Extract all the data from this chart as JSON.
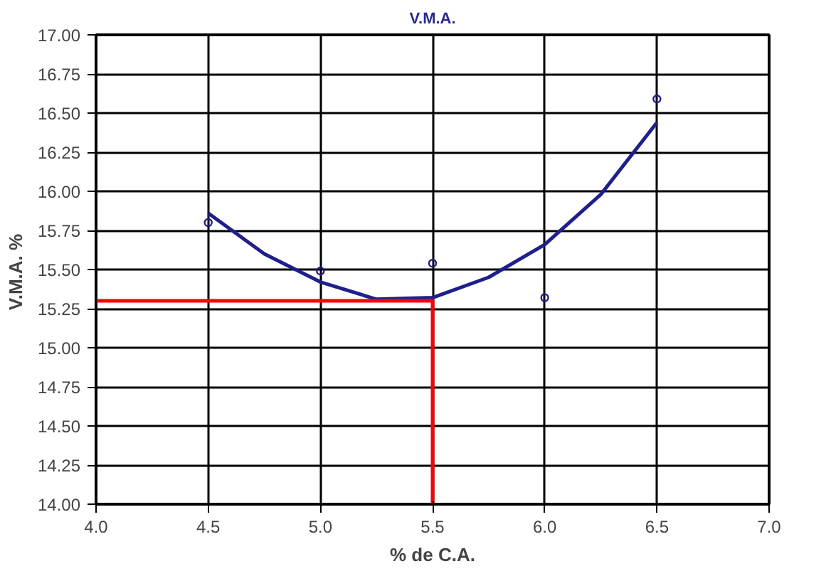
{
  "chart_data": {
    "type": "scatter",
    "title": "V.M.A.",
    "xlabel": "% de C.A.",
    "ylabel": "V.M.A.  %",
    "xlim": [
      4.0,
      7.0
    ],
    "xticks": [
      {
        "value": 4.0,
        "label": "4.0"
      },
      {
        "value": 4.5,
        "label": "4.5"
      },
      {
        "value": 5.0,
        "label": "5.0"
      },
      {
        "value": 5.5,
        "label": "5.5"
      },
      {
        "value": 6.0,
        "label": "6.0"
      },
      {
        "value": 6.5,
        "label": "6.5"
      },
      {
        "value": 7.0,
        "label": "7.0"
      }
    ],
    "ylim": [
      14.0,
      17.0
    ],
    "yticks": [
      {
        "value": 14.0,
        "label": "14.00"
      },
      {
        "value": 14.25,
        "label": "14.25"
      },
      {
        "value": 14.5,
        "label": "14.50"
      },
      {
        "value": 14.75,
        "label": "14.75"
      },
      {
        "value": 15.0,
        "label": "15.00"
      },
      {
        "value": 15.25,
        "label": "15.25"
      },
      {
        "value": 15.5,
        "label": "15.50"
      },
      {
        "value": 15.75,
        "label": "15.75"
      },
      {
        "value": 16.0,
        "label": "16.00"
      },
      {
        "value": 16.25,
        "label": "16.25"
      },
      {
        "value": 16.5,
        "label": "16.50"
      },
      {
        "value": 16.75,
        "label": "16.75"
      },
      {
        "value": 17.0,
        "label": "17.00"
      }
    ],
    "grid": true,
    "series": [
      {
        "marker": "circle",
        "color": "#1f1f8c",
        "x": [
          4.5,
          5.0,
          5.5,
          6.0,
          6.5
        ],
        "values": [
          15.8,
          15.49,
          15.54,
          15.32,
          16.59
        ]
      },
      {
        "type": "line",
        "line_style": "solid",
        "color": "#1f1f8c",
        "x": [
          4.5,
          4.75,
          5.0,
          5.25,
          5.5,
          5.75,
          6.0,
          6.25,
          6.5
        ],
        "values": [
          15.86,
          15.6,
          15.42,
          15.31,
          15.32,
          15.45,
          15.66,
          15.98,
          16.44
        ]
      },
      {
        "type": "line",
        "line_style": "solid",
        "color": "#ff0000",
        "x": [
          4.0,
          5.5,
          5.5
        ],
        "values": [
          15.3,
          15.3,
          14.0
        ]
      }
    ]
  }
}
